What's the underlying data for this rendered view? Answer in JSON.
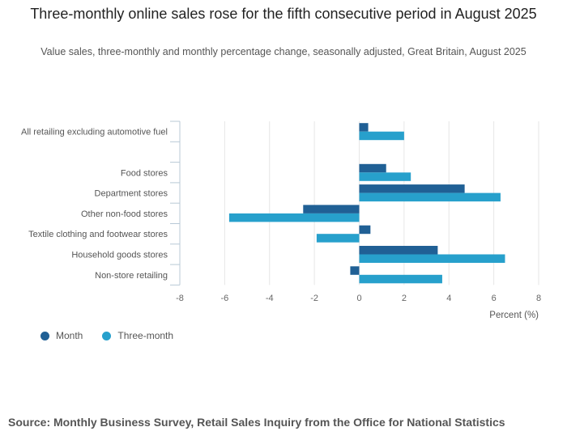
{
  "header": {
    "title": "Three-monthly online sales rose for the fifth consecutive period in August 2025",
    "subtitle": "Value sales, three-monthly and monthly percentage change, seasonally adjusted, Great Britain, August 2025"
  },
  "source": "Source: Monthly Business Survey, Retail Sales Inquiry from the Office for National Statistics",
  "chart_data": {
    "type": "bar",
    "orientation": "horizontal",
    "categories": [
      "All retailing excluding automotive fuel",
      "",
      "Food stores",
      "Department stores",
      "Other non-food stores",
      "Textile clothing and footwear stores",
      "Household goods stores",
      "Non-store retailing"
    ],
    "series": [
      {
        "name": "Month",
        "color": "#206095",
        "values": [
          0.4,
          null,
          1.2,
          4.7,
          -2.5,
          0.5,
          3.5,
          -0.4
        ]
      },
      {
        "name": "Three-month",
        "color": "#27a0cc",
        "values": [
          2.0,
          null,
          2.3,
          6.3,
          -5.8,
          -1.9,
          6.5,
          3.7
        ]
      }
    ],
    "xlabel": "Percent (%)",
    "xlim": [
      -8,
      8
    ],
    "xticks": [
      "-8",
      "-6",
      "-4",
      "-2",
      "0",
      "2",
      "4",
      "6",
      "8"
    ],
    "grid": true,
    "legend": "bottom-left"
  }
}
